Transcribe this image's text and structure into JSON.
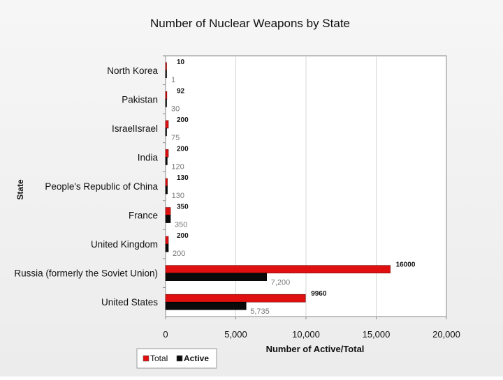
{
  "chart_data": {
    "type": "bar",
    "orientation": "horizontal",
    "title": "Number of Nuclear Weapons by State",
    "xlabel": "Number of Active/Total",
    "ylabel": "State",
    "xlim": [
      0,
      20000
    ],
    "xticks": [
      0,
      5000,
      10000,
      15000,
      20000
    ],
    "xtick_labels": [
      "0",
      "5,000",
      "10,000",
      "15,000",
      "20,000"
    ],
    "grid": "vertical",
    "legend_position": "bottom-left",
    "categories": [
      "North Korea",
      "Pakistan",
      "IsraelIsrael",
      "India",
      "People's Republic of China",
      "France",
      "United Kingdom",
      "Russia (formerly the Soviet Union)",
      "United States"
    ],
    "series": [
      {
        "name": "Total",
        "color": "#e01010",
        "values": [
          10,
          92,
          200,
          200,
          130,
          350,
          200,
          16000,
          9960
        ],
        "labels": [
          "10",
          "92",
          "200",
          "200",
          "130",
          "350",
          "200",
          "16000",
          "9960"
        ]
      },
      {
        "name": "Active",
        "color": "#0a0a0a",
        "values": [
          1,
          30,
          75,
          120,
          130,
          350,
          200,
          7200,
          5735
        ],
        "labels": [
          "1",
          "30",
          "75",
          "120",
          "130",
          "350",
          "200",
          "7,200",
          "5,735"
        ]
      }
    ]
  }
}
